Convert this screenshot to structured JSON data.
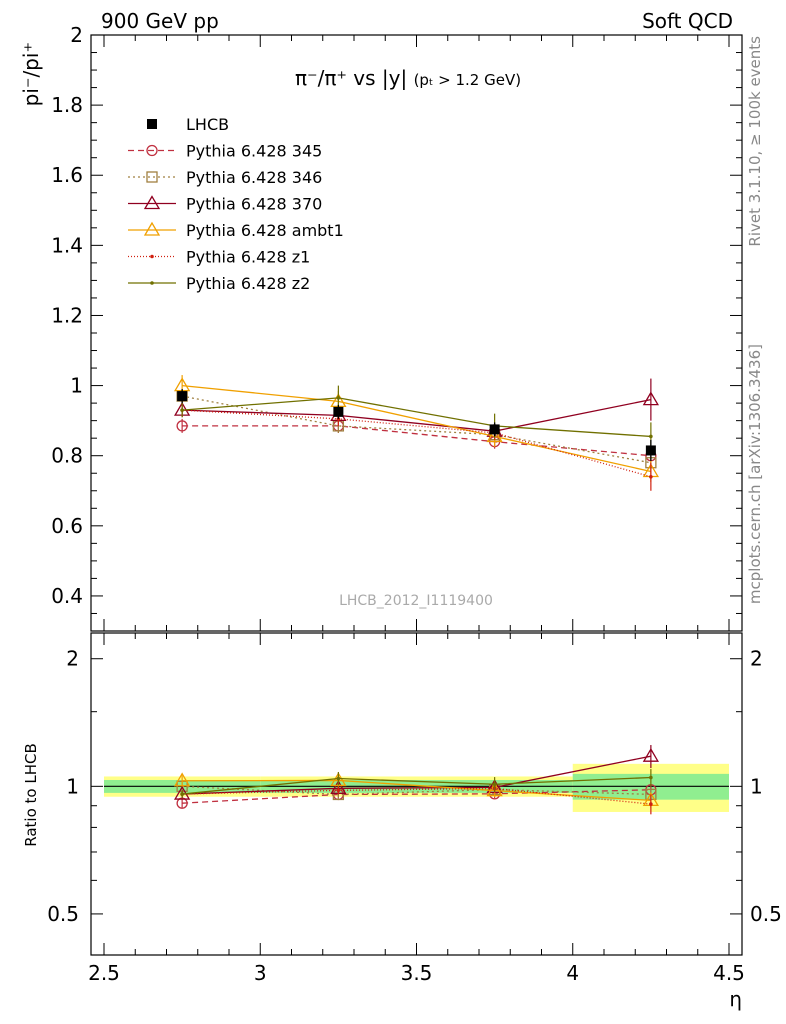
{
  "header": {
    "left": "900 GeV pp",
    "right": "Soft QCD"
  },
  "side": {
    "rivet": "Rivet 3.1.10, ≥ 100k events",
    "mcplots": "mcplots.cern.ch [arXiv:1306.3436]"
  },
  "chart_data": {
    "type": "line",
    "title_main": "π⁻/π⁺ vs |y|",
    "title_sub": "(pₜ > 1.2 GeV)",
    "ylabel": "pi⁻/pi⁺",
    "ratio_ylabel": "Ratio to LHCB",
    "xlabel": "η",
    "watermark": "LHCB_2012_I1119400",
    "xlim": [
      2.5,
      4.5
    ],
    "ylim": [
      0.3,
      2.0
    ],
    "ratio_ylim": [
      0.4,
      2.3
    ],
    "x_ticks": [
      "2.5",
      "3",
      "3.5",
      "4",
      "4.5"
    ],
    "y_ticks": [
      "0.4",
      "0.6",
      "0.8",
      "1",
      "1.2",
      "1.4",
      "1.6",
      "1.8",
      "2"
    ],
    "ratio_y_ticks": [
      "0.5",
      "1",
      "2"
    ],
    "x": [
      2.75,
      3.25,
      3.75,
      4.25
    ],
    "data": {
      "name": "LHCB",
      "values": [
        0.97,
        0.925,
        0.875,
        0.815
      ],
      "errors": [
        0.02,
        0.02,
        0.02,
        0.03
      ],
      "band_green": [
        0.035,
        0.035,
        0.035,
        0.07
      ],
      "band_yellow": [
        0.055,
        0.055,
        0.055,
        0.13
      ]
    },
    "series": [
      {
        "name": "Pythia 6.428 345",
        "values": [
          0.885,
          0.885,
          0.84,
          0.8
        ],
        "errors": [
          0.02,
          0.02,
          0.02,
          0.02
        ],
        "color": "#c03040",
        "dash": "6,4",
        "marker": "circle"
      },
      {
        "name": "Pythia 6.428 346",
        "values": [
          0.97,
          0.885,
          0.86,
          0.78
        ],
        "errors": [
          0.02,
          0.02,
          0.02,
          0.02
        ],
        "color": "#a08040",
        "dash": "2,3",
        "marker": "square"
      },
      {
        "name": "Pythia 6.428 370",
        "values": [
          0.93,
          0.915,
          0.87,
          0.96
        ],
        "errors": [
          0.02,
          0.02,
          0.02,
          0.06
        ],
        "color": "#900020",
        "dash": "",
        "marker": "triangle"
      },
      {
        "name": "Pythia 6.428 ambt1",
        "values": [
          1.0,
          0.955,
          0.855,
          0.755
        ],
        "errors": [
          0.03,
          0.03,
          0.03,
          0.03
        ],
        "color": "#f0a000",
        "dash": "",
        "marker": "triangle"
      },
      {
        "name": "Pythia 6.428 z1",
        "values": [
          0.93,
          0.905,
          0.865,
          0.74
        ],
        "errors": [
          0.02,
          0.02,
          0.02,
          0.04
        ],
        "color": "#d02010",
        "dash": "1,2",
        "marker": "dot"
      },
      {
        "name": "Pythia 6.428 z2",
        "values": [
          0.93,
          0.965,
          0.885,
          0.855
        ],
        "errors": [
          0.02,
          0.035,
          0.035,
          0.04
        ],
        "color": "#707000",
        "dash": "",
        "marker": "dot"
      }
    ],
    "grid": false,
    "legend_position": "top-left"
  }
}
